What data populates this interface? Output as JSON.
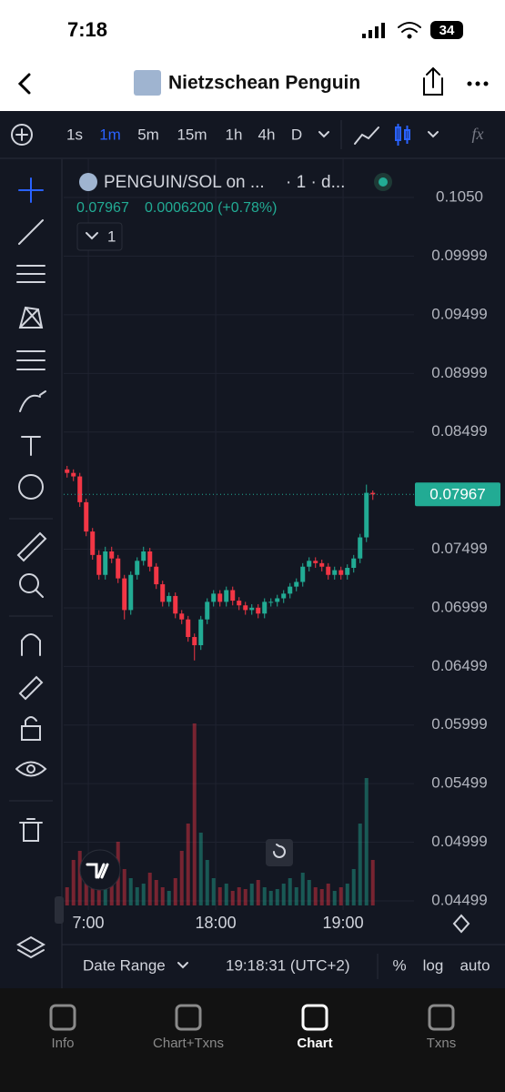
{
  "status_bar": {
    "time": "7:18",
    "battery": "34"
  },
  "header": {
    "title": "Nietzschean Penguin"
  },
  "toolbar": {
    "intervals": [
      "1s",
      "1m",
      "5m",
      "15m",
      "1h",
      "4h",
      "D"
    ],
    "active_interval": "1m",
    "formula": "fx"
  },
  "chart_data": {
    "type": "candlestick",
    "symbol": "PENGUIN/SOL on ...",
    "meta": "· 1 · d...",
    "last_price": 0.07967,
    "change": "0.0006200 (+0.78%)",
    "indicator_count": 1,
    "x": [
      -10,
      -7,
      -4,
      -1,
      2,
      5,
      8,
      11,
      14,
      17,
      20,
      23,
      26,
      29,
      32,
      35,
      38,
      41,
      44,
      47,
      50,
      53,
      56,
      59,
      62,
      65,
      68,
      71,
      74,
      77,
      80,
      83,
      86,
      89,
      92,
      95,
      98,
      101,
      104,
      107,
      110,
      113,
      116,
      119,
      122,
      125,
      128,
      131,
      134
    ],
    "open": [
      0.0818,
      0.0815,
      0.0812,
      0.079,
      0.0765,
      0.0745,
      0.0728,
      0.0748,
      0.0742,
      0.0725,
      0.0698,
      0.0728,
      0.074,
      0.0748,
      0.0735,
      0.072,
      0.0705,
      0.071,
      0.0695,
      0.069,
      0.0675,
      0.0668,
      0.069,
      0.0705,
      0.0712,
      0.0705,
      0.0715,
      0.0706,
      0.0702,
      0.0698,
      0.07,
      0.0695,
      0.0705,
      0.0705,
      0.0708,
      0.0712,
      0.0718,
      0.0722,
      0.0735,
      0.074,
      0.0738,
      0.0735,
      0.0728,
      0.0732,
      0.0728,
      0.0734,
      0.0742,
      0.076,
      0.0798
    ],
    "high": [
      0.0821,
      0.0818,
      0.0815,
      0.0793,
      0.0768,
      0.0749,
      0.0752,
      0.0752,
      0.0745,
      0.0728,
      0.0731,
      0.0743,
      0.0752,
      0.0751,
      0.0738,
      0.0723,
      0.0713,
      0.0713,
      0.0698,
      0.0693,
      0.0678,
      0.0693,
      0.0708,
      0.0715,
      0.0715,
      0.0718,
      0.0718,
      0.0709,
      0.0705,
      0.0703,
      0.0703,
      0.0708,
      0.0708,
      0.0711,
      0.0715,
      0.0721,
      0.0725,
      0.0738,
      0.0743,
      0.0743,
      0.0741,
      0.0738,
      0.0735,
      0.0735,
      0.0737,
      0.0745,
      0.0763,
      0.0805,
      0.08
    ],
    "low": [
      0.0811,
      0.0808,
      0.0786,
      0.0761,
      0.0741,
      0.0724,
      0.0724,
      0.0738,
      0.0721,
      0.069,
      0.0694,
      0.0724,
      0.0736,
      0.0731,
      0.0716,
      0.0701,
      0.0701,
      0.0691,
      0.0686,
      0.0671,
      0.0655,
      0.0664,
      0.0686,
      0.0701,
      0.0701,
      0.0701,
      0.0702,
      0.0698,
      0.0694,
      0.0694,
      0.0691,
      0.0691,
      0.0701,
      0.0701,
      0.0704,
      0.0708,
      0.0714,
      0.0718,
      0.0731,
      0.0734,
      0.0731,
      0.0724,
      0.0724,
      0.0724,
      0.0724,
      0.073,
      0.0738,
      0.0756,
      0.0792
    ],
    "close": [
      0.0815,
      0.0812,
      0.079,
      0.0765,
      0.0745,
      0.0728,
      0.0748,
      0.0742,
      0.0725,
      0.0698,
      0.0728,
      0.074,
      0.0748,
      0.0735,
      0.072,
      0.0705,
      0.071,
      0.0695,
      0.069,
      0.0675,
      0.0668,
      0.069,
      0.0705,
      0.0712,
      0.0705,
      0.0715,
      0.0706,
      0.0702,
      0.0698,
      0.07,
      0.0695,
      0.0705,
      0.0705,
      0.0708,
      0.0712,
      0.0718,
      0.0722,
      0.0735,
      0.074,
      0.0738,
      0.0735,
      0.0728,
      0.0732,
      0.0728,
      0.0734,
      0.0742,
      0.076,
      0.0798,
      0.07967
    ],
    "volume": [
      10,
      25,
      30,
      20,
      15,
      22,
      18,
      12,
      35,
      20,
      15,
      10,
      12,
      18,
      14,
      10,
      8,
      15,
      30,
      45,
      100,
      40,
      25,
      15,
      10,
      12,
      8,
      10,
      9,
      12,
      14,
      10,
      8,
      9,
      12,
      15,
      10,
      18,
      14,
      10,
      9,
      12,
      8,
      10,
      12,
      20,
      45,
      70,
      25
    ],
    "up_color": "#22ab94",
    "down_color": "#f23645",
    "xlim": [
      -11.6,
      153.4
    ],
    "xticks": [
      {
        "value": 0,
        "label": "7:00"
      },
      {
        "value": 60,
        "label": "18:00"
      },
      {
        "value": 120,
        "label": "19:00"
      }
    ],
    "ylim": [
      0.04421,
      0.10826
    ],
    "yticks": [
      {
        "value": 0.105,
        "label": "0.1050"
      },
      0.09999,
      0.09499,
      0.08999,
      0.08499,
      0.07499,
      0.06999,
      0.06499,
      0.05999,
      0.05499,
      0.04999,
      0.04499
    ],
    "grid": true
  },
  "bottom_bar": {
    "date_range": "Date Range",
    "time": "19:18:31 (UTC+2)",
    "percent": "%",
    "log": "log",
    "auto": "auto"
  },
  "tabs": [
    "Info",
    "Chart+Txns",
    "Chart",
    "Txns"
  ],
  "active_tab": "Chart"
}
